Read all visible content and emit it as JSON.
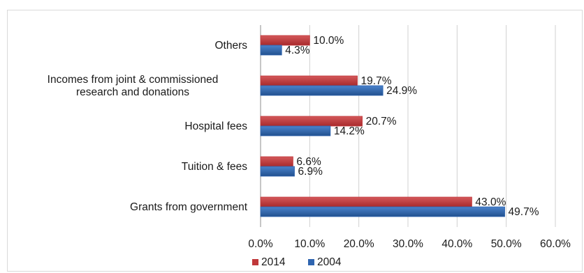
{
  "chart_data": {
    "type": "bar",
    "orientation": "horizontal",
    "title": "",
    "xlabel": "",
    "ylabel": "",
    "categories": [
      [
        "Others"
      ],
      [
        "Incomes from joint & commissioned",
        "research and donations"
      ],
      [
        "Hospital fees"
      ],
      [
        "Tuition & fees"
      ],
      [
        "Grants from government"
      ]
    ],
    "series": [
      {
        "name": "2014",
        "color": "#c0383a",
        "values": [
          10.0,
          19.7,
          20.7,
          6.6,
          43.0
        ],
        "labels": [
          "10.0%",
          "19.7%",
          "20.7%",
          "6.6%",
          "43.0%"
        ]
      },
      {
        "name": "2004",
        "color": "#2f65b0",
        "values": [
          4.3,
          24.9,
          14.2,
          6.9,
          49.7
        ],
        "labels": [
          "4.3%",
          "24.9%",
          "14.2%",
          "6.9%",
          "49.7%"
        ]
      }
    ],
    "xlim": [
      0,
      60
    ],
    "xticks": [
      "0.0%",
      "10.0%",
      "20.0%",
      "30.0%",
      "40.0%",
      "50.0%",
      "60.0%"
    ],
    "grid": true,
    "legend_position": "bottom"
  }
}
